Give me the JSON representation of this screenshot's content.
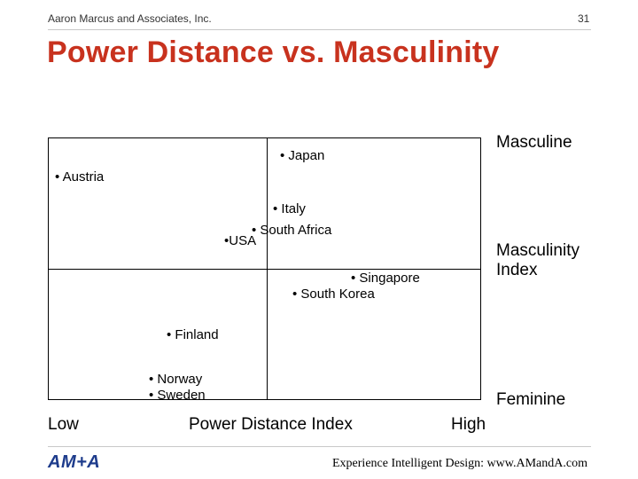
{
  "header": {
    "company": "Aaron Marcus and Associates, Inc.",
    "page_number": "31"
  },
  "title": "Power Distance vs. Masculinity",
  "diagram": {
    "right_labels": {
      "top": "Masculine",
      "middle_line1": "Masculinity",
      "middle_line2": "Index",
      "bottom": "Feminine"
    },
    "bottom_labels": {
      "low": "Low",
      "axis": "Power Distance Index",
      "high": "High"
    },
    "countries": [
      "• Japan",
      "• Austria",
      "• Italy",
      "• South Africa",
      "•USA",
      "• Singapore",
      "• South Korea",
      "• Finland",
      "• Norway",
      "• Sweden"
    ]
  },
  "footer": {
    "logo": "AM+A",
    "tagline": "Experience Intelligent Design: www.AMandA.com"
  }
}
